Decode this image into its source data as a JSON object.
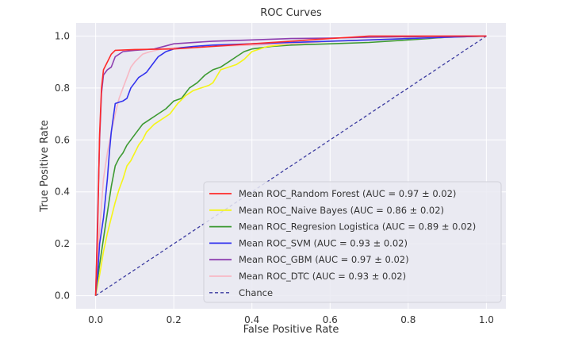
{
  "chart_data": {
    "type": "line",
    "title": "ROC Curves",
    "xlabel": "False Positive Rate",
    "ylabel": "True Positive Rate",
    "xlim": [
      -0.05,
      1.05
    ],
    "ylim": [
      -0.05,
      1.05
    ],
    "xticks": [
      0.0,
      0.2,
      0.4,
      0.6,
      0.8,
      1.0
    ],
    "xtick_labels": [
      "0.0",
      "0.2",
      "0.4",
      "0.6",
      "0.8",
      "1.0"
    ],
    "yticks": [
      0.0,
      0.2,
      0.4,
      0.6,
      0.8,
      1.0
    ],
    "ytick_labels": [
      "0.0",
      "0.2",
      "0.4",
      "0.6",
      "0.8",
      "1.0"
    ],
    "grid": true,
    "background": "#eaeaf2",
    "legend_position": "lower-right",
    "series": [
      {
        "name": "Mean ROC_Random Forest (AUC = 0.97 ± 0.02)",
        "color": "#ff2a2a",
        "dashed": false,
        "x": [
          0,
          0.005,
          0.01,
          0.015,
          0.02,
          0.03,
          0.04,
          0.05,
          0.1,
          0.2,
          0.3,
          0.4,
          0.5,
          0.6,
          0.7,
          0.8,
          0.9,
          1.0
        ],
        "y": [
          0,
          0.25,
          0.62,
          0.8,
          0.87,
          0.9,
          0.93,
          0.945,
          0.948,
          0.95,
          0.96,
          0.97,
          0.98,
          0.99,
          1.0,
          1.0,
          1.0,
          1.0
        ]
      },
      {
        "name": "Mean ROC_Naive Bayes (AUC = 0.86 ± 0.02)",
        "color": "#f5f518",
        "dashed": false,
        "x": [
          0,
          0.01,
          0.02,
          0.03,
          0.04,
          0.05,
          0.06,
          0.07,
          0.08,
          0.09,
          0.1,
          0.11,
          0.12,
          0.13,
          0.15,
          0.17,
          0.19,
          0.21,
          0.23,
          0.25,
          0.27,
          0.29,
          0.3,
          0.32,
          0.34,
          0.36,
          0.38,
          0.4,
          0.42,
          0.44,
          0.5,
          0.6,
          0.7,
          0.8,
          0.9,
          1.0
        ],
        "y": [
          0,
          0.08,
          0.17,
          0.24,
          0.3,
          0.36,
          0.41,
          0.45,
          0.5,
          0.52,
          0.55,
          0.58,
          0.6,
          0.63,
          0.66,
          0.68,
          0.7,
          0.74,
          0.77,
          0.79,
          0.8,
          0.81,
          0.82,
          0.87,
          0.88,
          0.89,
          0.91,
          0.94,
          0.95,
          0.96,
          0.97,
          0.98,
          0.985,
          0.99,
          0.995,
          1.0
        ]
      },
      {
        "name": "Mean ROC_Regresion Logistica (AUC = 0.89 ± 0.02)",
        "color": "#3d9a32",
        "dashed": false,
        "x": [
          0,
          0.01,
          0.02,
          0.03,
          0.04,
          0.05,
          0.06,
          0.07,
          0.08,
          0.09,
          0.1,
          0.11,
          0.12,
          0.14,
          0.16,
          0.18,
          0.2,
          0.22,
          0.24,
          0.26,
          0.28,
          0.3,
          0.32,
          0.34,
          0.36,
          0.38,
          0.4,
          0.45,
          0.5,
          0.6,
          0.7,
          0.8,
          0.9,
          1.0
        ],
        "y": [
          0,
          0.12,
          0.22,
          0.32,
          0.42,
          0.5,
          0.53,
          0.55,
          0.58,
          0.6,
          0.62,
          0.64,
          0.66,
          0.68,
          0.7,
          0.72,
          0.75,
          0.76,
          0.8,
          0.82,
          0.85,
          0.87,
          0.88,
          0.9,
          0.92,
          0.94,
          0.95,
          0.96,
          0.965,
          0.97,
          0.975,
          0.985,
          0.995,
          1.0
        ]
      },
      {
        "name": "Mean ROC_SVM (AUC = 0.93 ± 0.02)",
        "color": "#3333ee",
        "dashed": false,
        "x": [
          0,
          0.005,
          0.01,
          0.02,
          0.03,
          0.035,
          0.04,
          0.05,
          0.06,
          0.07,
          0.08,
          0.09,
          0.1,
          0.11,
          0.12,
          0.13,
          0.14,
          0.15,
          0.16,
          0.17,
          0.18,
          0.2,
          0.22,
          0.25,
          0.3,
          0.4,
          0.5,
          0.6,
          0.7,
          0.8,
          0.9,
          1.0
        ],
        "y": [
          0,
          0.08,
          0.2,
          0.3,
          0.45,
          0.55,
          0.63,
          0.74,
          0.745,
          0.75,
          0.76,
          0.8,
          0.82,
          0.84,
          0.85,
          0.86,
          0.88,
          0.9,
          0.92,
          0.93,
          0.94,
          0.95,
          0.955,
          0.96,
          0.965,
          0.97,
          0.975,
          0.98,
          0.985,
          0.99,
          0.995,
          1.0
        ]
      },
      {
        "name": "Mean ROC_GBM (AUC = 0.97 ± 0.02)",
        "color": "#8e3fb0",
        "dashed": false,
        "x": [
          0,
          0.005,
          0.01,
          0.015,
          0.02,
          0.03,
          0.04,
          0.05,
          0.07,
          0.1,
          0.15,
          0.2,
          0.3,
          0.4,
          0.5,
          0.6,
          0.7,
          0.8,
          0.9,
          1.0
        ],
        "y": [
          0,
          0.3,
          0.6,
          0.78,
          0.85,
          0.87,
          0.88,
          0.92,
          0.94,
          0.945,
          0.95,
          0.97,
          0.98,
          0.985,
          0.99,
          0.992,
          0.995,
          0.997,
          0.999,
          1.0
        ]
      },
      {
        "name": "Mean ROC_DTC (AUC = 0.93 ± 0.02)",
        "color": "#f7b8c4",
        "dashed": false,
        "x": [
          0,
          0.01,
          0.02,
          0.03,
          0.04,
          0.05,
          0.06,
          0.07,
          0.08,
          0.09,
          0.1,
          0.12,
          0.14,
          0.17,
          0.2,
          0.3,
          0.4,
          0.5,
          0.6,
          0.7,
          0.8,
          0.9,
          1.0
        ],
        "y": [
          0,
          0.25,
          0.45,
          0.55,
          0.63,
          0.7,
          0.76,
          0.8,
          0.84,
          0.88,
          0.9,
          0.93,
          0.94,
          0.95,
          0.955,
          0.96,
          0.965,
          0.97,
          0.98,
          0.985,
          0.99,
          0.995,
          1.0
        ]
      },
      {
        "name": "Chance",
        "color": "#3b3ba0",
        "dashed": true,
        "x": [
          0,
          1
        ],
        "y": [
          0,
          1
        ]
      }
    ]
  }
}
